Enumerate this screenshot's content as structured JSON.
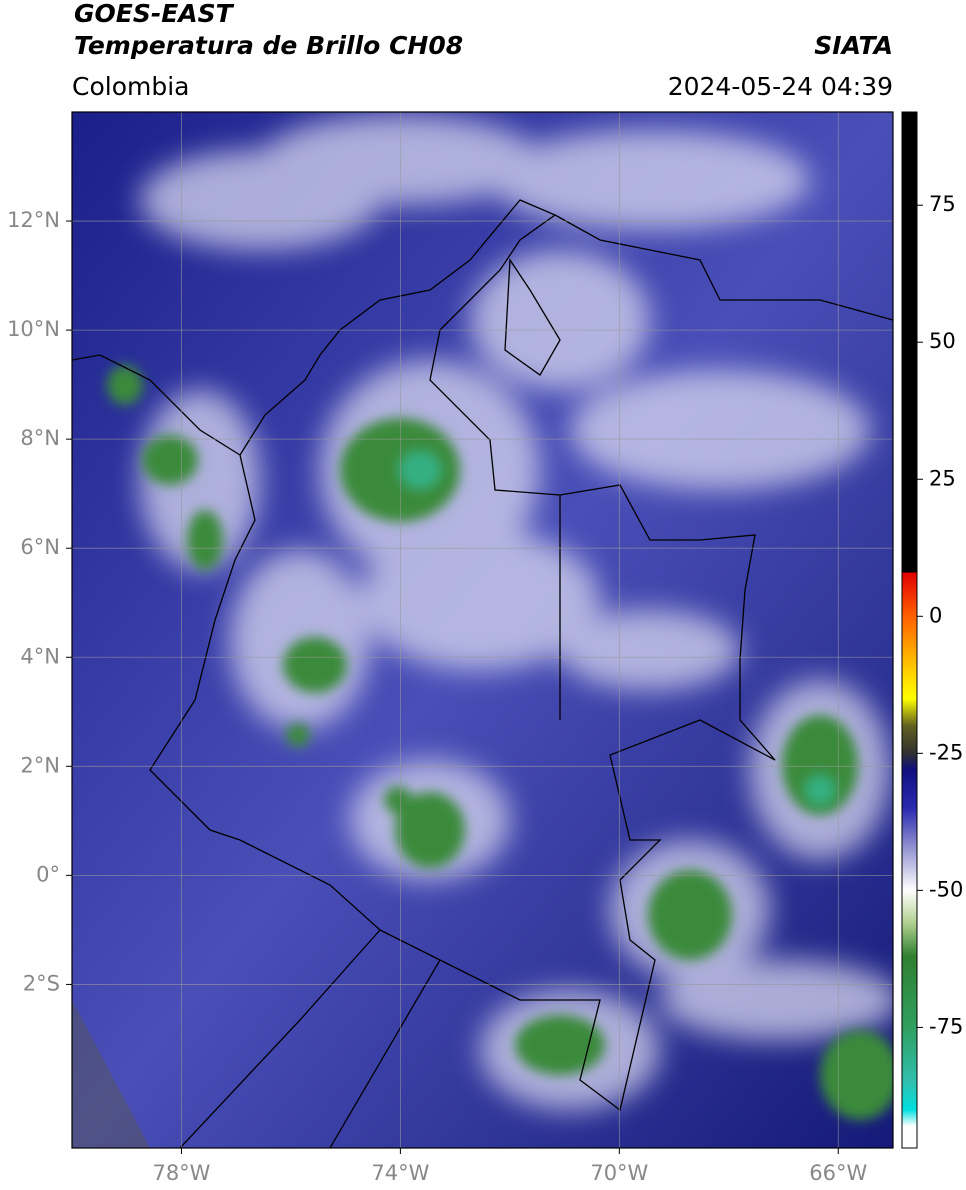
{
  "header": {
    "satellite": "GOES-EAST",
    "product": "Temperatura de Brillo CH08",
    "source": "SIATA",
    "region": "Colombia",
    "datetime": "2024-05-24 04:39"
  },
  "map": {
    "xlim": [
      -80,
      -65
    ],
    "ylim": [
      -5,
      14
    ],
    "xticks": [
      {
        "value": -78,
        "label": "78°W"
      },
      {
        "value": -74,
        "label": "74°W"
      },
      {
        "value": -70,
        "label": "70°W"
      },
      {
        "value": -66,
        "label": "66°W"
      }
    ],
    "yticks": [
      {
        "value": 12,
        "label": "12°N"
      },
      {
        "value": 10,
        "label": "10°N"
      },
      {
        "value": 8,
        "label": "8°N"
      },
      {
        "value": 6,
        "label": "6°N"
      },
      {
        "value": 4,
        "label": "4°N"
      },
      {
        "value": 2,
        "label": "2°N"
      },
      {
        "value": 0,
        "label": "0°"
      },
      {
        "value": -2,
        "label": "2°S"
      }
    ],
    "grid": true
  },
  "colorbar": {
    "lim": [
      -97,
      92
    ],
    "ticks": [
      75,
      50,
      25,
      0,
      -25,
      -50,
      -75
    ],
    "stops": [
      {
        "value": 92,
        "color": "#000000"
      },
      {
        "value": 8,
        "color": "#000000"
      },
      {
        "value": 8,
        "color": "#e00000"
      },
      {
        "value": 0,
        "color": "#ff6000"
      },
      {
        "value": -10,
        "color": "#ffd000"
      },
      {
        "value": -15,
        "color": "#ffff00"
      },
      {
        "value": -20,
        "color": "#606020"
      },
      {
        "value": -25,
        "color": "#303030"
      },
      {
        "value": -28,
        "color": "#101080"
      },
      {
        "value": -35,
        "color": "#2a2ab0"
      },
      {
        "value": -42,
        "color": "#9090d0"
      },
      {
        "value": -50,
        "color": "#ffffff"
      },
      {
        "value": -56,
        "color": "#b0d090"
      },
      {
        "value": -62,
        "color": "#308030"
      },
      {
        "value": -75,
        "color": "#30a060"
      },
      {
        "value": -85,
        "color": "#30c0b0"
      },
      {
        "value": -90,
        "color": "#00e0e0"
      },
      {
        "value": -93,
        "color": "#ffffff"
      },
      {
        "value": -97,
        "color": "#ffffff"
      }
    ]
  }
}
